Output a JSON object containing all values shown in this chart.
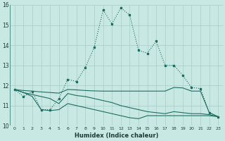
{
  "xlabel": "Humidex (Indice chaleur)",
  "bg_color": "#c8e8e4",
  "line_color": "#1e6e60",
  "grid_color": "#a8ccc8",
  "series_main": {
    "x": [
      0,
      1,
      2,
      3,
      4,
      5,
      6,
      7,
      8,
      9,
      10,
      11,
      12,
      13,
      14,
      15,
      16,
      17,
      18,
      19,
      20,
      21,
      22,
      23
    ],
    "y": [
      11.8,
      11.45,
      11.7,
      10.8,
      10.8,
      11.35,
      12.3,
      12.2,
      12.9,
      13.9,
      15.75,
      15.05,
      15.85,
      15.5,
      13.75,
      13.6,
      14.2,
      13.0,
      13.0,
      12.5,
      11.9,
      11.85,
      10.65,
      10.45
    ]
  },
  "series_top": {
    "x": [
      0,
      1,
      2,
      3,
      4,
      5,
      6,
      7,
      8,
      9,
      10,
      11,
      12,
      13,
      14,
      15,
      16,
      17,
      18,
      19,
      20,
      21,
      22,
      23
    ],
    "y": [
      11.8,
      11.75,
      11.72,
      11.68,
      11.65,
      11.62,
      11.8,
      11.78,
      11.75,
      11.73,
      11.72,
      11.72,
      11.72,
      11.72,
      11.72,
      11.72,
      11.72,
      11.72,
      11.9,
      11.88,
      11.72,
      11.72,
      10.65,
      10.45
    ]
  },
  "series_mid": {
    "x": [
      0,
      1,
      2,
      3,
      4,
      5,
      6,
      7,
      8,
      9,
      10,
      11,
      12,
      13,
      14,
      15,
      16,
      17,
      18,
      19,
      20,
      21,
      22,
      23
    ],
    "y": [
      11.8,
      11.65,
      11.55,
      11.45,
      11.35,
      11.1,
      11.6,
      11.5,
      11.45,
      11.35,
      11.25,
      11.15,
      11.0,
      10.9,
      10.8,
      10.7,
      10.65,
      10.6,
      10.7,
      10.65,
      10.6,
      10.6,
      10.55,
      10.45
    ]
  },
  "series_bot": {
    "x": [
      0,
      1,
      2,
      3,
      4,
      5,
      6,
      7,
      8,
      9,
      10,
      11,
      12,
      13,
      14,
      15,
      16,
      17,
      18,
      19,
      20,
      21,
      22,
      23
    ],
    "y": [
      11.8,
      11.65,
      11.45,
      10.8,
      10.75,
      10.8,
      11.1,
      11.0,
      10.9,
      10.8,
      10.7,
      10.6,
      10.5,
      10.4,
      10.35,
      10.5,
      10.5,
      10.5,
      10.5,
      10.5,
      10.5,
      10.5,
      10.5,
      10.45
    ]
  },
  "ylim": [
    10,
    16
  ],
  "yticks": [
    10,
    11,
    12,
    13,
    14,
    15,
    16
  ],
  "xticks": [
    0,
    1,
    2,
    3,
    4,
    5,
    6,
    7,
    8,
    9,
    10,
    11,
    12,
    13,
    14,
    15,
    16,
    17,
    18,
    19,
    20,
    21,
    22,
    23
  ]
}
